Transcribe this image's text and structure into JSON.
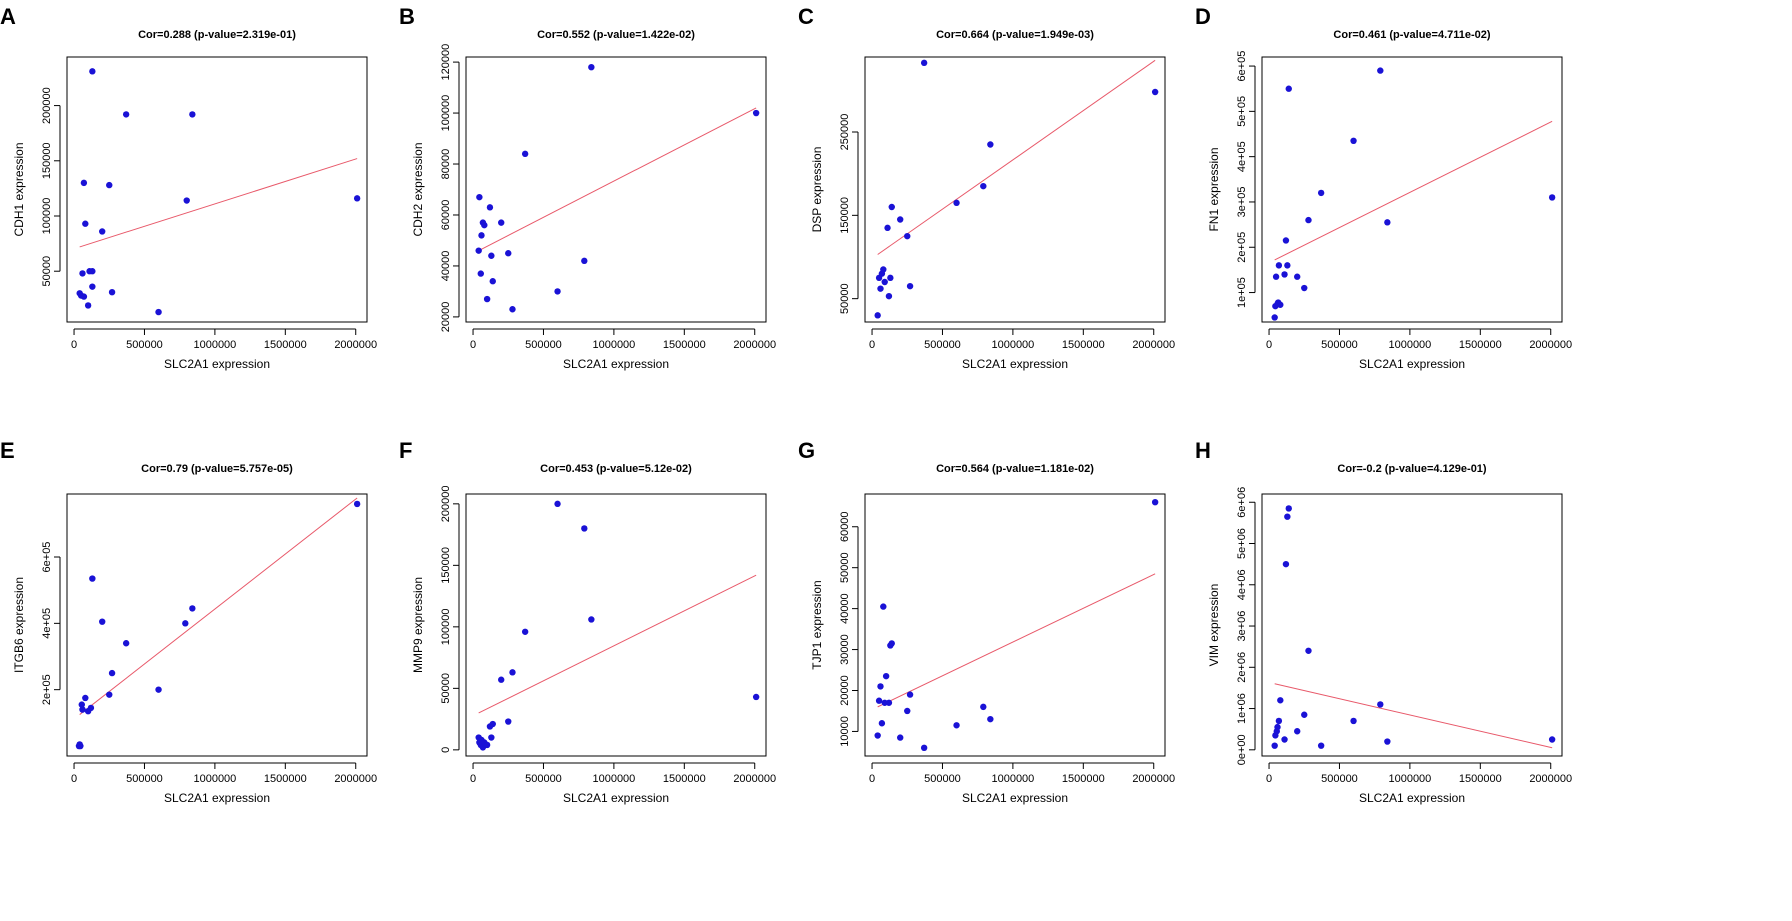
{
  "figure": {
    "point_color": "#1a12d6",
    "line_color": "#e8596a"
  },
  "chart_data": [
    {
      "panel": "A",
      "type": "scatter",
      "title": "Cor=0.288 (p-value=2.319e-01)",
      "xlabel": "SLC2A1 expression",
      "ylabel": "CDH1 expression",
      "xlim": [
        -50000,
        2080000
      ],
      "ylim": [
        4000,
        244000
      ],
      "xticks": [
        0,
        500000,
        1000000,
        1500000,
        2000000
      ],
      "xtick_labels": [
        "0",
        "500000",
        "1000000",
        "1500000",
        "2000000"
      ],
      "yticks": [
        50000,
        100000,
        150000,
        200000
      ],
      "ytick_labels": [
        "50000",
        "100000",
        "150000",
        "200000"
      ],
      "x": [
        40000,
        50000,
        70000,
        100000,
        60000,
        80000,
        110000,
        130000,
        130000,
        200000,
        250000,
        270000,
        370000,
        600000,
        800000,
        840000,
        2010000,
        70000,
        130000
      ],
      "y": [
        30000,
        28000,
        27000,
        19000,
        48000,
        93000,
        50000,
        36000,
        231000,
        86000,
        128000,
        31000,
        192000,
        13000,
        114000,
        192000,
        116000,
        130000,
        50000
      ],
      "fit": {
        "x": [
          40000,
          2010000
        ],
        "y": [
          72000,
          152000
        ]
      }
    },
    {
      "panel": "B",
      "type": "scatter",
      "title": "Cor=0.552 (p-value=1.422e-02)",
      "xlabel": "SLC2A1 expression",
      "ylabel": "CDH2 expression",
      "xlim": [
        -50000,
        2080000
      ],
      "ylim": [
        18000,
        122000
      ],
      "xticks": [
        0,
        500000,
        1000000,
        1500000,
        2000000
      ],
      "xtick_labels": [
        "0",
        "500000",
        "1000000",
        "1500000",
        "2000000"
      ],
      "yticks": [
        20000,
        40000,
        60000,
        80000,
        100000,
        120000
      ],
      "ytick_labels": [
        "20000",
        "40000",
        "60000",
        "80000",
        "100000",
        "120000"
      ],
      "x": [
        40000,
        45000,
        55000,
        60000,
        70000,
        80000,
        100000,
        120000,
        130000,
        140000,
        200000,
        250000,
        280000,
        370000,
        600000,
        790000,
        840000,
        2010000
      ],
      "y": [
        46000,
        67000,
        37000,
        52000,
        57000,
        56000,
        27000,
        63000,
        44000,
        34000,
        57000,
        45000,
        23000,
        84000,
        30000,
        42000,
        118000,
        100000
      ],
      "fit": {
        "x": [
          40000,
          2010000
        ],
        "y": [
          46000,
          102000
        ]
      }
    },
    {
      "panel": "C",
      "type": "scatter",
      "title": "Cor=0.664 (p-value=1.949e-03)",
      "xlabel": "SLC2A1 expression",
      "ylabel": "DSP expression",
      "xlim": [
        -50000,
        2080000
      ],
      "ylim": [
        22000,
        340000
      ],
      "xticks": [
        0,
        500000,
        1000000,
        1500000,
        2000000
      ],
      "xtick_labels": [
        "0",
        "500000",
        "1000000",
        "1500000",
        "2000000"
      ],
      "yticks": [
        50000,
        150000,
        250000
      ],
      "ytick_labels": [
        "50000",
        "150000",
        "250000"
      ],
      "x": [
        40000,
        50000,
        60000,
        70000,
        80000,
        90000,
        110000,
        120000,
        130000,
        140000,
        200000,
        250000,
        270000,
        370000,
        600000,
        790000,
        840000,
        2010000
      ],
      "y": [
        30000,
        75000,
        62000,
        80000,
        85000,
        70000,
        135000,
        53000,
        75000,
        160000,
        145000,
        125000,
        65000,
        333000,
        165000,
        185000,
        235000,
        298000
      ],
      "fit": {
        "x": [
          40000,
          2010000
        ],
        "y": [
          103000,
          336000
        ]
      }
    },
    {
      "panel": "D",
      "type": "scatter",
      "title": "Cor=0.461 (p-value=4.711e-02)",
      "xlabel": "SLC2A1 expression",
      "ylabel": "FN1 expression",
      "xlim": [
        -50000,
        2080000
      ],
      "ylim": [
        35000,
        620000
      ],
      "xticks": [
        0,
        500000,
        1000000,
        1500000,
        2000000
      ],
      "xtick_labels": [
        "0",
        "500000",
        "1000000",
        "1500000",
        "2000000"
      ],
      "yticks": [
        100000,
        200000,
        300000,
        400000,
        500000,
        600000
      ],
      "ytick_labels": [
        "1e+05",
        "2e+05",
        "3e+05",
        "4e+05",
        "5e+05",
        "6e+05"
      ],
      "x": [
        40000,
        45000,
        50000,
        60000,
        65000,
        70000,
        80000,
        110000,
        120000,
        130000,
        140000,
        200000,
        250000,
        280000,
        370000,
        600000,
        790000,
        840000,
        2010000
      ],
      "y": [
        45000,
        70000,
        135000,
        75000,
        78000,
        160000,
        73000,
        140000,
        215000,
        160000,
        550000,
        135000,
        110000,
        260000,
        320000,
        435000,
        590000,
        255000,
        310000
      ],
      "fit": {
        "x": [
          40000,
          2010000
        ],
        "y": [
          172000,
          478000
        ]
      }
    },
    {
      "panel": "E",
      "type": "scatter",
      "title": "Cor=0.79 (p-value=5.757e-05)",
      "xlabel": "SLC2A1 expression",
      "ylabel": "ITGB6 expression",
      "xlim": [
        -50000,
        2080000
      ],
      "ylim": [
        0,
        790000
      ],
      "xticks": [
        0,
        500000,
        1000000,
        1500000,
        2000000
      ],
      "xtick_labels": [
        "0",
        "500000",
        "1000000",
        "1500000",
        "2000000"
      ],
      "yticks": [
        200000,
        400000,
        600000
      ],
      "ytick_labels": [
        "2e+05",
        "4e+05",
        "6e+05"
      ],
      "x": [
        35000,
        40000,
        45000,
        55000,
        60000,
        80000,
        100000,
        120000,
        130000,
        200000,
        250000,
        270000,
        370000,
        600000,
        790000,
        840000,
        2010000
      ],
      "y": [
        30000,
        35000,
        30000,
        155000,
        140000,
        175000,
        135000,
        145000,
        535000,
        405000,
        185000,
        250000,
        340000,
        200000,
        400000,
        445000,
        760000
      ],
      "fit": {
        "x": [
          40000,
          2010000
        ],
        "y": [
          125000,
          778000
        ]
      }
    },
    {
      "panel": "F",
      "type": "scatter",
      "title": "Cor=0.453 (p-value=5.12e-02)",
      "xlabel": "SLC2A1 expression",
      "ylabel": "MMP9 expression",
      "xlim": [
        -50000,
        2080000
      ],
      "ylim": [
        -5000,
        208000
      ],
      "xticks": [
        0,
        500000,
        1000000,
        1500000,
        2000000
      ],
      "xtick_labels": [
        "0",
        "500000",
        "1000000",
        "1500000",
        "2000000"
      ],
      "yticks": [
        0,
        50000,
        100000,
        150000,
        200000
      ],
      "ytick_labels": [
        "0",
        "50000",
        "100000",
        "150000",
        "200000"
      ],
      "x": [
        40000,
        45000,
        55000,
        60000,
        70000,
        80000,
        100000,
        120000,
        130000,
        140000,
        200000,
        250000,
        280000,
        370000,
        600000,
        790000,
        840000,
        2010000
      ],
      "y": [
        10000,
        6000,
        4000,
        8000,
        2000,
        6000,
        4000,
        19000,
        10000,
        21000,
        57000,
        23000,
        63000,
        96000,
        200000,
        180000,
        106000,
        43000
      ],
      "fit": {
        "x": [
          40000,
          2010000
        ],
        "y": [
          30000,
          142000
        ]
      }
    },
    {
      "panel": "G",
      "type": "scatter",
      "title": "Cor=0.564 (p-value=1.181e-02)",
      "xlabel": "SLC2A1 expression",
      "ylabel": "TJP1 expression",
      "xlim": [
        -50000,
        2080000
      ],
      "ylim": [
        4000,
        68000
      ],
      "xticks": [
        0,
        500000,
        1000000,
        1500000,
        2000000
      ],
      "xtick_labels": [
        "0",
        "500000",
        "1000000",
        "1500000",
        "2000000"
      ],
      "yticks": [
        10000,
        20000,
        30000,
        40000,
        50000,
        60000
      ],
      "ytick_labels": [
        "10000",
        "20000",
        "30000",
        "40000",
        "50000",
        "60000"
      ],
      "x": [
        40000,
        50000,
        60000,
        70000,
        80000,
        90000,
        100000,
        120000,
        130000,
        140000,
        200000,
        250000,
        270000,
        370000,
        600000,
        790000,
        840000,
        2010000
      ],
      "y": [
        9000,
        17500,
        21000,
        12000,
        40500,
        17000,
        23500,
        17000,
        31000,
        31500,
        8500,
        15000,
        19000,
        6000,
        11500,
        16000,
        13000,
        66000
      ],
      "fit": {
        "x": [
          40000,
          2010000
        ],
        "y": [
          16000,
          48500
        ]
      }
    },
    {
      "panel": "H",
      "type": "scatter",
      "title": "Cor=-0.2 (p-value=4.129e-01)",
      "xlabel": "SLC2A1 expression",
      "ylabel": "VIM expression",
      "xlim": [
        -50000,
        2080000
      ],
      "ylim": [
        -150000,
        6200000
      ],
      "xticks": [
        0,
        500000,
        1000000,
        1500000,
        2000000
      ],
      "xtick_labels": [
        "0",
        "500000",
        "1000000",
        "1500000",
        "2000000"
      ],
      "yticks": [
        0,
        1000000,
        2000000,
        3000000,
        4000000,
        5000000,
        6000000
      ],
      "ytick_labels": [
        "0e+00",
        "1e+06",
        "2e+06",
        "3e+06",
        "4e+06",
        "5e+06",
        "6e+06"
      ],
      "x": [
        40000,
        45000,
        55000,
        60000,
        70000,
        80000,
        110000,
        120000,
        130000,
        140000,
        200000,
        250000,
        280000,
        370000,
        600000,
        790000,
        840000,
        2010000
      ],
      "y": [
        100000,
        350000,
        450000,
        550000,
        700000,
        1200000,
        250000,
        4500000,
        5650000,
        5850000,
        450000,
        850000,
        2400000,
        100000,
        700000,
        1100000,
        200000,
        250000
      ],
      "fit": {
        "x": [
          40000,
          2010000
        ],
        "y": [
          1600000,
          50000
        ]
      }
    }
  ]
}
